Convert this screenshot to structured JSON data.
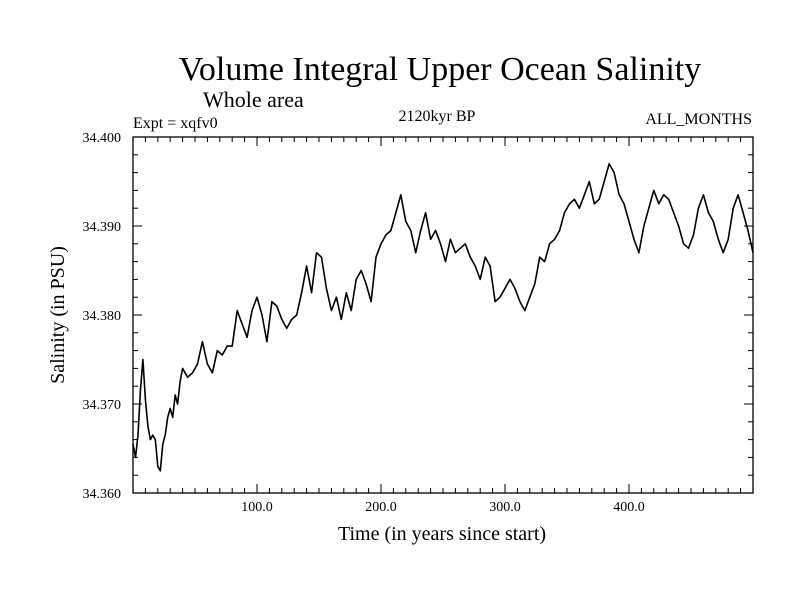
{
  "chart_data": {
    "type": "line",
    "title": "Volume Integral Upper Ocean Salinity",
    "subtitle": "Whole area",
    "left_label": "Expt = xqfv0",
    "center_label": "2120kyr BP",
    "right_label": "ALL_MONTHS",
    "xlabel": "Time (in years since start)",
    "ylabel": "Salinity (in PSU)",
    "xlim": [
      0,
      500
    ],
    "ylim": [
      34.36,
      34.4
    ],
    "xticks": [
      100,
      200,
      300,
      400
    ],
    "xtick_labels": [
      "100.0",
      "200.0",
      "300.0",
      "400.0"
    ],
    "yticks": [
      34.36,
      34.37,
      34.38,
      34.39,
      34.4
    ],
    "ytick_labels": [
      "34.360",
      "34.370",
      "34.380",
      "34.390",
      "34.400"
    ],
    "series": [
      {
        "name": "salinity",
        "color": "#000000",
        "x": [
          0,
          2,
          4,
          6,
          8,
          10,
          12,
          14,
          16,
          18,
          20,
          22,
          24,
          26,
          28,
          30,
          32,
          34,
          36,
          38,
          40,
          44,
          48,
          52,
          56,
          60,
          64,
          68,
          72,
          76,
          80,
          84,
          88,
          92,
          96,
          100,
          104,
          108,
          112,
          116,
          120,
          124,
          128,
          132,
          136,
          140,
          144,
          148,
          152,
          156,
          160,
          164,
          168,
          172,
          176,
          180,
          184,
          188,
          192,
          196,
          200,
          204,
          208,
          212,
          216,
          220,
          224,
          228,
          232,
          236,
          240,
          244,
          248,
          252,
          256,
          260,
          264,
          268,
          272,
          276,
          280,
          284,
          288,
          292,
          296,
          300,
          304,
          308,
          312,
          316,
          320,
          324,
          328,
          332,
          336,
          340,
          344,
          348,
          352,
          356,
          360,
          364,
          368,
          372,
          376,
          380,
          384,
          388,
          392,
          396,
          400,
          404,
          408,
          412,
          416,
          420,
          424,
          428,
          432,
          436,
          440,
          444,
          448,
          452,
          456,
          460,
          464,
          468,
          472,
          476,
          480,
          484,
          488,
          492,
          496,
          500
        ],
        "values": [
          34.3655,
          34.364,
          34.3665,
          34.3715,
          34.375,
          34.3705,
          34.3675,
          34.366,
          34.3665,
          34.366,
          34.363,
          34.3625,
          34.3655,
          34.3665,
          34.3685,
          34.3695,
          34.3685,
          34.371,
          34.37,
          34.3725,
          34.374,
          34.373,
          34.3735,
          34.3745,
          34.377,
          34.3745,
          34.3735,
          34.376,
          34.3755,
          34.3765,
          34.3765,
          34.3805,
          34.379,
          34.3775,
          34.3805,
          34.382,
          34.38,
          34.377,
          34.3815,
          34.381,
          34.3795,
          34.3785,
          34.3795,
          34.38,
          34.3825,
          34.3855,
          34.3825,
          34.387,
          34.3865,
          34.383,
          34.3805,
          34.382,
          34.3795,
          34.3825,
          34.3805,
          34.384,
          34.385,
          34.3835,
          34.3815,
          34.3865,
          34.388,
          34.389,
          34.3895,
          34.3915,
          34.3935,
          34.3905,
          34.3895,
          34.387,
          34.3895,
          34.3915,
          34.3885,
          34.3895,
          34.388,
          34.386,
          34.3885,
          34.387,
          34.3875,
          34.388,
          34.3865,
          34.3855,
          34.384,
          34.3865,
          34.3855,
          34.3815,
          34.382,
          34.383,
          34.384,
          34.383,
          34.3815,
          34.3805,
          34.382,
          34.3835,
          34.3865,
          34.386,
          34.388,
          34.3885,
          34.3895,
          34.3915,
          34.3925,
          34.393,
          34.392,
          34.3935,
          34.395,
          34.3925,
          34.393,
          34.395,
          34.397,
          34.396,
          34.3935,
          34.3925,
          34.3905,
          34.3885,
          34.387,
          34.39,
          34.392,
          34.394,
          34.3925,
          34.3935,
          34.393,
          34.3915,
          34.39,
          34.388,
          34.3875,
          34.389,
          34.392,
          34.3935,
          34.3915,
          34.3905,
          34.3885,
          34.387,
          34.3885,
          34.392,
          34.3935,
          34.3915,
          34.3895,
          34.387
        ]
      }
    ]
  }
}
